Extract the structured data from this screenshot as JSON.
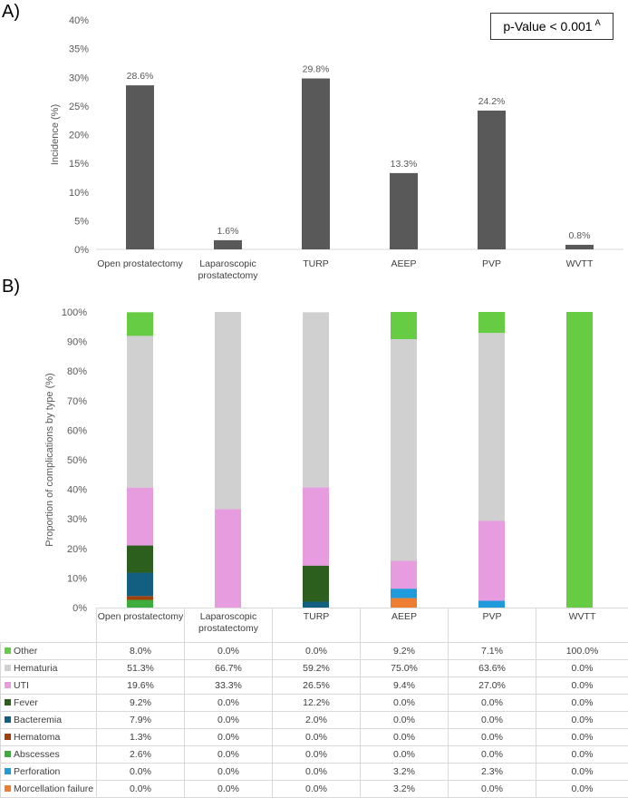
{
  "panel_a_label": "A)",
  "panel_b_label": "B)",
  "pvalue": {
    "text": "p-Value < 0.001",
    "superscript": "A"
  },
  "chart_data": [
    {
      "type": "bar",
      "panel": "A)",
      "categories": [
        "Open prostatectomy",
        "Laparoscopic prostatectomy",
        "TURP",
        "AEEP",
        "PVP",
        "WVTT"
      ],
      "values": [
        28.6,
        1.6,
        29.8,
        13.3,
        24.2,
        0.8
      ],
      "data_labels": [
        "28.6%",
        "1.6%",
        "29.8%",
        "13.3%",
        "24.2%",
        "0.8%"
      ],
      "ylabel": "Incidence (%)",
      "ylim": [
        0,
        40
      ],
      "yticks": [
        "0%",
        "5%",
        "10%",
        "15%",
        "20%",
        "25%",
        "30%",
        "35%",
        "40%"
      ],
      "bar_color": "#595959",
      "grid": false
    },
    {
      "type": "bar",
      "stacked": true,
      "panel": "B)",
      "categories": [
        "Open prostatectomy",
        "Laparoscopic prostatectomy",
        "TURP",
        "AEEP",
        "PVP",
        "WVTT"
      ],
      "ylabel": "Proportion of complications by type (%)",
      "ylim": [
        0,
        100
      ],
      "yticks": [
        "0%",
        "10%",
        "20%",
        "30%",
        "40%",
        "50%",
        "60%",
        "70%",
        "80%",
        "90%",
        "100%"
      ],
      "legend_position": "data-table",
      "series": [
        {
          "name": "Morcellation failure",
          "color": "#ED7D31",
          "values": [
            0.0,
            0.0,
            0.0,
            3.2,
            0.0,
            0.0
          ],
          "labels": [
            "0.0%",
            "0.0%",
            "0.0%",
            "3.2%",
            "0.0%",
            "0.0%"
          ]
        },
        {
          "name": "Perforation",
          "color": "#1F9BDB",
          "values": [
            0.0,
            0.0,
            0.0,
            3.2,
            2.3,
            0.0
          ],
          "labels": [
            "0.0%",
            "0.0%",
            "0.0%",
            "3.2%",
            "2.3%",
            "0.0%"
          ]
        },
        {
          "name": "Abscesses",
          "color": "#3DAE3D",
          "values": [
            2.6,
            0.0,
            0.0,
            0.0,
            0.0,
            0.0
          ],
          "labels": [
            "2.6%",
            "0.0%",
            "0.0%",
            "0.0%",
            "0.0%",
            "0.0%"
          ]
        },
        {
          "name": "Hematoma",
          "color": "#A0400A",
          "values": [
            1.3,
            0.0,
            0.0,
            0.0,
            0.0,
            0.0
          ],
          "labels": [
            "1.3%",
            "0.0%",
            "0.0%",
            "0.0%",
            "0.0%",
            "0.0%"
          ]
        },
        {
          "name": "Bacteremia",
          "color": "#125F82",
          "values": [
            7.9,
            0.0,
            2.0,
            0.0,
            0.0,
            0.0
          ],
          "labels": [
            "7.9%",
            "0.0%",
            "2.0%",
            "0.0%",
            "0.0%",
            "0.0%"
          ]
        },
        {
          "name": "Fever",
          "color": "#2C5E1E",
          "values": [
            9.2,
            0.0,
            12.2,
            0.0,
            0.0,
            0.0
          ],
          "labels": [
            "9.2%",
            "0.0%",
            "12.2%",
            "0.0%",
            "0.0%",
            "0.0%"
          ]
        },
        {
          "name": "UTI",
          "color": "#E69CDE",
          "values": [
            19.6,
            33.3,
            26.5,
            9.4,
            27.0,
            0.0
          ],
          "labels": [
            "19.6%",
            "33.3%",
            "26.5%",
            "9.4%",
            "27.0%",
            "0.0%"
          ]
        },
        {
          "name": "Hematuria",
          "color": "#D0D0D0",
          "values": [
            51.3,
            66.7,
            59.2,
            75.0,
            63.6,
            0.0
          ],
          "labels": [
            "51.3%",
            "66.7%",
            "59.2%",
            "75.0%",
            "63.6%",
            "0.0%"
          ]
        },
        {
          "name": "Other",
          "color": "#66CC44",
          "values": [
            8.0,
            0.0,
            0.0,
            9.2,
            7.1,
            100.0
          ],
          "labels": [
            "8.0%",
            "0.0%",
            "0.0%",
            "9.2%",
            "7.1%",
            "100.0%"
          ]
        }
      ]
    }
  ]
}
